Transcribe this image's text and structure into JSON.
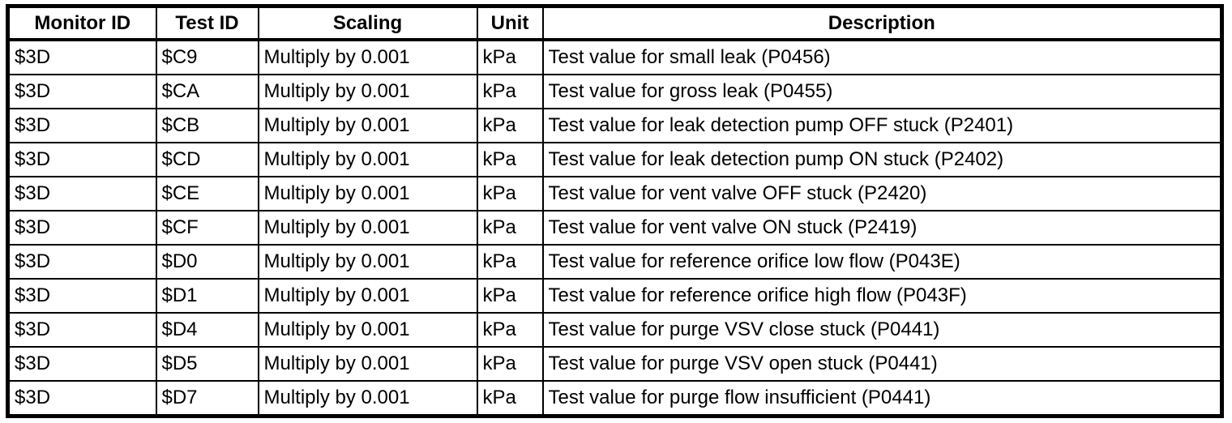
{
  "colors": {
    "background": "#ffffff",
    "border": "#000000",
    "text": "#000000"
  },
  "table": {
    "columns": [
      "Monitor ID",
      "Test ID",
      "Scaling",
      "Unit",
      "Description"
    ],
    "rows": [
      {
        "monitor_id": "$3D",
        "test_id": "$C9",
        "scaling": "Multiply by 0.001",
        "unit": "kPa",
        "description": "Test value for small leak (P0456)"
      },
      {
        "monitor_id": "$3D",
        "test_id": "$CA",
        "scaling": "Multiply by 0.001",
        "unit": "kPa",
        "description": "Test value for gross leak (P0455)"
      },
      {
        "monitor_id": "$3D",
        "test_id": "$CB",
        "scaling": "Multiply by 0.001",
        "unit": "kPa",
        "description": "Test value for leak detection pump OFF stuck (P2401)"
      },
      {
        "monitor_id": "$3D",
        "test_id": "$CD",
        "scaling": "Multiply by 0.001",
        "unit": "kPa",
        "description": "Test value for leak detection pump ON stuck (P2402)"
      },
      {
        "monitor_id": "$3D",
        "test_id": "$CE",
        "scaling": "Multiply by 0.001",
        "unit": "kPa",
        "description": "Test value for vent valve OFF stuck (P2420)"
      },
      {
        "monitor_id": "$3D",
        "test_id": "$CF",
        "scaling": "Multiply by 0.001",
        "unit": "kPa",
        "description": "Test value for vent valve ON stuck (P2419)"
      },
      {
        "monitor_id": "$3D",
        "test_id": "$D0",
        "scaling": "Multiply by 0.001",
        "unit": "kPa",
        "description": "Test value for reference orifice low flow (P043E)"
      },
      {
        "monitor_id": "$3D",
        "test_id": "$D1",
        "scaling": "Multiply by 0.001",
        "unit": "kPa",
        "description": "Test value for reference orifice high flow (P043F)"
      },
      {
        "monitor_id": "$3D",
        "test_id": "$D4",
        "scaling": "Multiply by 0.001",
        "unit": "kPa",
        "description": "Test value for purge VSV close stuck (P0441)"
      },
      {
        "monitor_id": "$3D",
        "test_id": "$D5",
        "scaling": "Multiply by 0.001",
        "unit": "kPa",
        "description": "Test value for purge VSV open stuck (P0441)"
      },
      {
        "monitor_id": "$3D",
        "test_id": "$D7",
        "scaling": "Multiply by 0.001",
        "unit": "kPa",
        "description": "Test value for purge flow insufficient (P0441)"
      }
    ]
  }
}
